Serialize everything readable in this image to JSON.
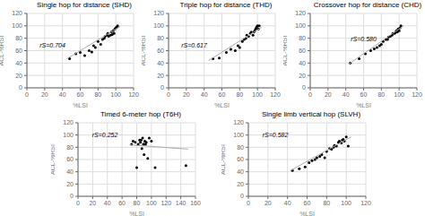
{
  "chart_data": [
    {
      "type": "scatter",
      "title": "Single hop for distance (SHD)",
      "annotation": "rS=0.704",
      "x_label": "%LSI",
      "y_label": "ACL-%RSI",
      "xlim": [
        0,
        120
      ],
      "ylim": [
        0,
        120
      ],
      "xticks": [
        0,
        20,
        40,
        60,
        80,
        100,
        120
      ],
      "yticks": [
        0,
        20,
        40,
        60,
        80,
        100,
        120
      ],
      "grid": true,
      "series": [
        {
          "type": "scatter",
          "color": "black",
          "x": [
            48,
            55,
            60,
            65,
            70,
            73,
            75,
            77,
            80,
            83,
            85,
            87,
            88,
            90,
            91,
            92,
            94,
            95,
            96,
            97,
            98,
            99,
            100,
            101,
            102
          ],
          "values": [
            47,
            55,
            57,
            52,
            60,
            58,
            68,
            65,
            75,
            70,
            78,
            80,
            83,
            85,
            88,
            83,
            85,
            90,
            86,
            92,
            88,
            95,
            97,
            98,
            100
          ]
        },
        {
          "type": "line",
          "color": "#aaaaaa",
          "x": [
            45,
            105
          ],
          "values": [
            47,
            99
          ]
        }
      ]
    },
    {
      "type": "scatter",
      "title": "Triple hop for distance (THD)",
      "annotation": "rS=0.617",
      "x_label": "%LSI",
      "y_label": "ACL-%RSI",
      "xlim": [
        0,
        120
      ],
      "ylim": [
        0,
        120
      ],
      "xticks": [
        0,
        20,
        40,
        60,
        80,
        100,
        120
      ],
      "yticks": [
        0,
        20,
        40,
        60,
        80,
        100,
        120
      ],
      "grid": true,
      "series": [
        {
          "type": "scatter",
          "color": "black",
          "x": [
            50,
            57,
            65,
            70,
            75,
            78,
            80,
            83,
            85,
            87,
            88,
            90,
            92,
            93,
            95,
            96,
            97,
            98,
            99,
            100,
            101,
            102
          ],
          "values": [
            47,
            48,
            57,
            62,
            60,
            68,
            65,
            75,
            78,
            80,
            85,
            83,
            88,
            90,
            85,
            90,
            92,
            95,
            98,
            100,
            95,
            100
          ]
        },
        {
          "type": "line",
          "color": "#aaaaaa",
          "x": [
            45,
            105
          ],
          "values": [
            44,
            98
          ]
        }
      ]
    },
    {
      "type": "scatter",
      "title": "Crossover hop for distance (CHD)",
      "annotation": "rS=0.580",
      "x_label": "%LSI",
      "y_label": "ACL-%RSI",
      "xlim": [
        0,
        120
      ],
      "ylim": [
        0,
        120
      ],
      "xticks": [
        0,
        20,
        40,
        60,
        80,
        100,
        120
      ],
      "yticks": [
        0,
        20,
        40,
        60,
        80,
        100,
        120
      ],
      "grid": true,
      "series": [
        {
          "type": "scatter",
          "color": "black",
          "x": [
            45,
            55,
            62,
            68,
            72,
            75,
            78,
            80,
            82,
            85,
            87,
            88,
            90,
            92,
            93,
            95,
            96,
            97,
            98,
            99,
            100,
            101,
            102
          ],
          "values": [
            40,
            47,
            55,
            60,
            63,
            65,
            68,
            70,
            75,
            78,
            78,
            82,
            83,
            85,
            88,
            88,
            90,
            92,
            90,
            95,
            92,
            97,
            100
          ]
        },
        {
          "type": "line",
          "color": "#aaaaaa",
          "x": [
            43,
            105
          ],
          "values": [
            38,
            100
          ]
        }
      ]
    },
    {
      "type": "scatter",
      "title": "Timed 6-meter hop (T6H)",
      "annotation": "rS=0.252",
      "x_label": "%LSI",
      "y_label": "ACL-%RSI",
      "xlim": [
        0,
        160
      ],
      "ylim": [
        0,
        120
      ],
      "xticks": [
        0,
        20,
        40,
        60,
        80,
        100,
        120,
        140,
        160
      ],
      "yticks": [
        0,
        20,
        40,
        60,
        80,
        100,
        120
      ],
      "grid": true,
      "series": [
        {
          "type": "scatter",
          "color": "black",
          "x": [
            73,
            75,
            78,
            80,
            82,
            84,
            85,
            86,
            87,
            88,
            89,
            90,
            90,
            91,
            92,
            93,
            95,
            97,
            100,
            105,
            147
          ],
          "values": [
            85,
            90,
            88,
            47,
            85,
            92,
            88,
            92,
            78,
            95,
            85,
            85,
            68,
            90,
            85,
            88,
            62,
            95,
            90,
            47,
            50
          ]
        },
        {
          "type": "line",
          "color": "#aaaaaa",
          "x": [
            70,
            150
          ],
          "values": [
            84,
            77
          ]
        }
      ]
    },
    {
      "type": "scatter",
      "title": "Single limb vertical hop (SLVH)",
      "annotation": "rS=0.582",
      "x_label": "%LSI",
      "y_label": "ACL-%RSI",
      "xlim": [
        0,
        120
      ],
      "ylim": [
        0,
        120
      ],
      "xticks": [
        0,
        20,
        40,
        60,
        80,
        100,
        120
      ],
      "yticks": [
        0,
        20,
        40,
        60,
        80,
        100,
        120
      ],
      "grid": true,
      "series": [
        {
          "type": "scatter",
          "color": "black",
          "x": [
            45,
            52,
            58,
            62,
            65,
            68,
            70,
            73,
            75,
            78,
            80,
            83,
            85,
            87,
            88,
            90,
            92,
            93,
            95,
            96,
            97,
            98,
            100,
            102
          ],
          "values": [
            42,
            45,
            48,
            55,
            58,
            60,
            63,
            65,
            68,
            63,
            73,
            78,
            77,
            80,
            83,
            82,
            88,
            90,
            87,
            92,
            93,
            90,
            97,
            82
          ]
        },
        {
          "type": "line",
          "color": "#aaaaaa",
          "x": [
            43,
            105
          ],
          "values": [
            42,
            97
          ]
        }
      ]
    }
  ]
}
